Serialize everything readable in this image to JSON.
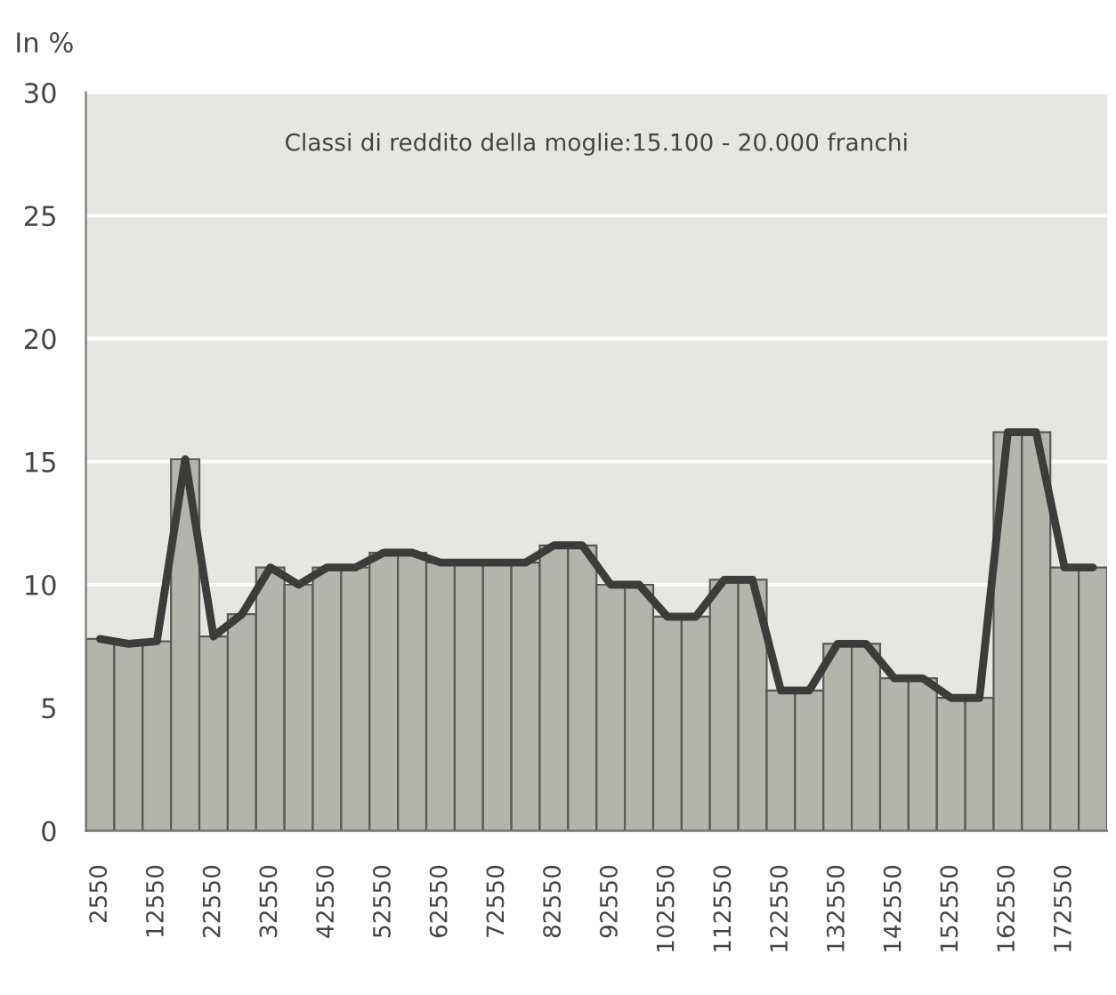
{
  "chart_data": {
    "type": "bar",
    "ylabel": "In %",
    "annotations": [
      "Classi di reddito della moglie:15.100 - 20.000 franchi"
    ],
    "categories": [
      "2550",
      null,
      "12550",
      null,
      "22550",
      null,
      "32550",
      null,
      "42550",
      null,
      "52550",
      null,
      "62550",
      null,
      "72550",
      null,
      "82550",
      null,
      "92550",
      null,
      "102550",
      null,
      "112550",
      null,
      "122550",
      null,
      "132550",
      null,
      "142550",
      null,
      "152550",
      null,
      "162550",
      null,
      "172550",
      null
    ],
    "series": [
      {
        "color": "#b4b4ac",
        "values": [
          7.8,
          7.6,
          7.7,
          15.1,
          7.9,
          8.8,
          10.7,
          10.0,
          10.7,
          10.7,
          11.3,
          11.3,
          10.9,
          10.9,
          10.9,
          10.9,
          11.6,
          11.6,
          10.0,
          10.0,
          8.7,
          8.7,
          10.2,
          10.2,
          5.7,
          5.7,
          7.6,
          7.6,
          6.2,
          6.2,
          5.4,
          5.4,
          16.2,
          16.2,
          10.7,
          10.7
        ]
      },
      {
        "type": "line",
        "color": "#3a3d3a",
        "values": [
          7.8,
          7.6,
          7.7,
          15.1,
          7.9,
          8.8,
          10.7,
          10.0,
          10.7,
          10.7,
          11.3,
          11.3,
          10.9,
          10.9,
          10.9,
          10.9,
          11.6,
          11.6,
          10.0,
          10.0,
          8.7,
          8.7,
          10.2,
          10.2,
          5.7,
          5.7,
          7.6,
          7.6,
          6.2,
          6.2,
          5.4,
          5.4,
          16.2,
          16.2,
          10.7,
          10.7
        ]
      }
    ],
    "ylim": [
      0,
      30
    ],
    "yticks": [
      0,
      5,
      10,
      15,
      20,
      25,
      30
    ],
    "grid": "y",
    "marker": "none",
    "line_style": "solid"
  }
}
